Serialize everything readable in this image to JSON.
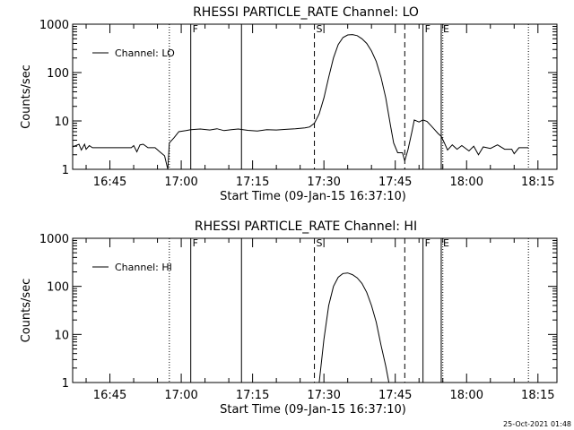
{
  "footer": {
    "timestamp": "25-Oct-2021 01:48"
  },
  "chart_data": [
    {
      "type": "line",
      "title": "RHESSI PARTICLE_RATE Channel: LO",
      "xlabel": "Start Time (09-Jan-15 16:37:10)",
      "ylabel": "Counts/sec",
      "xlim": [
        "16:37:10",
        "18:19:00"
      ],
      "ylim": [
        1,
        1000
      ],
      "yscale": "log",
      "xticks": [
        "16:45",
        "17:00",
        "17:15",
        "17:30",
        "17:45",
        "18:00",
        "18:15"
      ],
      "yticks": [
        "1",
        "10",
        "100",
        "1000"
      ],
      "legend": {
        "label": "Channel: LO",
        "placement": "top-left"
      },
      "markers": [
        {
          "time": "16:57:30",
          "style": "dotted",
          "label": ""
        },
        {
          "time": "17:02:00",
          "style": "solid",
          "label": "F"
        },
        {
          "time": "17:12:40",
          "style": "solid",
          "label": ""
        },
        {
          "time": "17:28:00",
          "style": "dashed",
          "label": "S"
        },
        {
          "time": "17:47:00",
          "style": "dashed",
          "label": ""
        },
        {
          "time": "17:50:50",
          "style": "solid",
          "label": "F"
        },
        {
          "time": "17:54:40",
          "style": "solid",
          "label": "E"
        },
        {
          "time": "17:55:00",
          "style": "dotted",
          "label": ""
        },
        {
          "time": "18:13:00",
          "style": "dotted",
          "label": ""
        }
      ],
      "series": [
        {
          "points": [
            [
              "16:37:10",
              2.9
            ],
            [
              "16:38:30",
              3.3
            ],
            [
              "16:39:00",
              2.5
            ],
            [
              "16:39:40",
              3.3
            ],
            [
              "16:40:00",
              2.6
            ],
            [
              "16:40:40",
              3.1
            ],
            [
              "16:41:20",
              2.8
            ],
            [
              "16:47:00",
              2.8
            ],
            [
              "16:49:30",
              2.8
            ],
            [
              "16:50:00",
              3.1
            ],
            [
              "16:50:40",
              2.3
            ],
            [
              "16:51:20",
              3.2
            ],
            [
              "16:52:00",
              3.3
            ],
            [
              "16:53:00",
              2.8
            ],
            [
              "16:54:30",
              2.8
            ],
            [
              "16:55:30",
              2.3
            ],
            [
              "16:56:30",
              1.9
            ],
            [
              "16:57:10",
              1.0
            ],
            [
              "16:57:30",
              3.5
            ],
            [
              "16:58:30",
              4.5
            ],
            [
              "16:59:30",
              6.0
            ],
            [
              "17:01:00",
              6.3
            ],
            [
              "17:02:00",
              6.6
            ],
            [
              "17:04:00",
              6.8
            ],
            [
              "17:06:00",
              6.5
            ],
            [
              "17:07:30",
              6.9
            ],
            [
              "17:09:00",
              6.3
            ],
            [
              "17:10:30",
              6.6
            ],
            [
              "17:12:00",
              6.8
            ],
            [
              "17:14:00",
              6.4
            ],
            [
              "17:16:00",
              6.2
            ],
            [
              "17:18:00",
              6.6
            ],
            [
              "17:20:00",
              6.5
            ],
            [
              "17:22:00",
              6.7
            ],
            [
              "17:24:00",
              6.9
            ],
            [
              "17:26:00",
              7.2
            ],
            [
              "17:27:00",
              7.5
            ],
            [
              "17:28:00",
              9.0
            ],
            [
              "17:29:00",
              14
            ],
            [
              "17:30:00",
              30
            ],
            [
              "17:31:00",
              80
            ],
            [
              "17:32:00",
              200
            ],
            [
              "17:33:00",
              380
            ],
            [
              "17:34:00",
              530
            ],
            [
              "17:35:00",
              600
            ],
            [
              "17:36:00",
              610
            ],
            [
              "17:37:00",
              580
            ],
            [
              "17:38:00",
              500
            ],
            [
              "17:39:00",
              400
            ],
            [
              "17:40:00",
              280
            ],
            [
              "17:41:00",
              170
            ],
            [
              "17:42:00",
              80
            ],
            [
              "17:43:00",
              30
            ],
            [
              "17:44:00",
              8
            ],
            [
              "17:44:40",
              3.5
            ],
            [
              "17:45:30",
              2.2
            ],
            [
              "17:46:30",
              2.2
            ],
            [
              "17:47:00",
              1.5
            ],
            [
              "17:47:40",
              2.5
            ],
            [
              "17:48:30",
              6.0
            ],
            [
              "17:49:00",
              10.5
            ],
            [
              "17:50:00",
              9.5
            ],
            [
              "17:50:50",
              10.5
            ],
            [
              "17:51:40",
              9.8
            ],
            [
              "17:52:30",
              8.0
            ],
            [
              "17:53:20",
              6.5
            ],
            [
              "17:54:00",
              5.5
            ],
            [
              "17:54:40",
              4.8
            ],
            [
              "17:55:20",
              3.5
            ],
            [
              "17:56:00",
              2.5
            ],
            [
              "17:57:00",
              3.2
            ],
            [
              "17:58:00",
              2.6
            ],
            [
              "17:59:00",
              3.1
            ],
            [
              "18:00:30",
              2.4
            ],
            [
              "18:01:30",
              3.0
            ],
            [
              "18:02:30",
              2.0
            ],
            [
              "18:03:30",
              2.9
            ],
            [
              "18:05:00",
              2.7
            ],
            [
              "18:06:30",
              3.2
            ],
            [
              "18:08:00",
              2.6
            ],
            [
              "18:09:30",
              2.6
            ],
            [
              "18:10:00",
              2.1
            ],
            [
              "18:11:00",
              2.8
            ],
            [
              "18:13:00",
              2.8
            ]
          ]
        }
      ]
    },
    {
      "type": "line",
      "title": "RHESSI PARTICLE_RATE Channel: HI",
      "xlabel": "Start Time (09-Jan-15 16:37:10)",
      "ylabel": "Counts/sec",
      "xlim": [
        "16:37:10",
        "18:19:00"
      ],
      "ylim": [
        1,
        1000
      ],
      "yscale": "log",
      "xticks": [
        "16:45",
        "17:00",
        "17:15",
        "17:30",
        "17:45",
        "18:00",
        "18:15"
      ],
      "yticks": [
        "1",
        "10",
        "100",
        "1000"
      ],
      "legend": {
        "label": "Channel: HI",
        "placement": "top-left"
      },
      "markers": [
        {
          "time": "16:57:30",
          "style": "dotted",
          "label": ""
        },
        {
          "time": "17:02:00",
          "style": "solid",
          "label": "F"
        },
        {
          "time": "17:12:40",
          "style": "solid",
          "label": ""
        },
        {
          "time": "17:28:00",
          "style": "dashed",
          "label": "S"
        },
        {
          "time": "17:47:00",
          "style": "dashed",
          "label": ""
        },
        {
          "time": "17:50:50",
          "style": "solid",
          "label": "F"
        },
        {
          "time": "17:54:40",
          "style": "solid",
          "label": "E"
        },
        {
          "time": "17:55:00",
          "style": "dotted",
          "label": ""
        },
        {
          "time": "18:13:00",
          "style": "dotted",
          "label": ""
        }
      ],
      "series": [
        {
          "points": [
            [
              "17:29:00",
              1.0
            ],
            [
              "17:30:00",
              8
            ],
            [
              "17:31:00",
              40
            ],
            [
              "17:32:00",
              100
            ],
            [
              "17:33:00",
              155
            ],
            [
              "17:34:00",
              185
            ],
            [
              "17:35:00",
              190
            ],
            [
              "17:36:00",
              175
            ],
            [
              "17:37:00",
              150
            ],
            [
              "17:38:00",
              115
            ],
            [
              "17:39:00",
              75
            ],
            [
              "17:40:00",
              40
            ],
            [
              "17:41:00",
              18
            ],
            [
              "17:42:00",
              6
            ],
            [
              "17:43:00",
              2.2
            ],
            [
              "17:43:40",
              1.0
            ]
          ]
        }
      ]
    }
  ]
}
